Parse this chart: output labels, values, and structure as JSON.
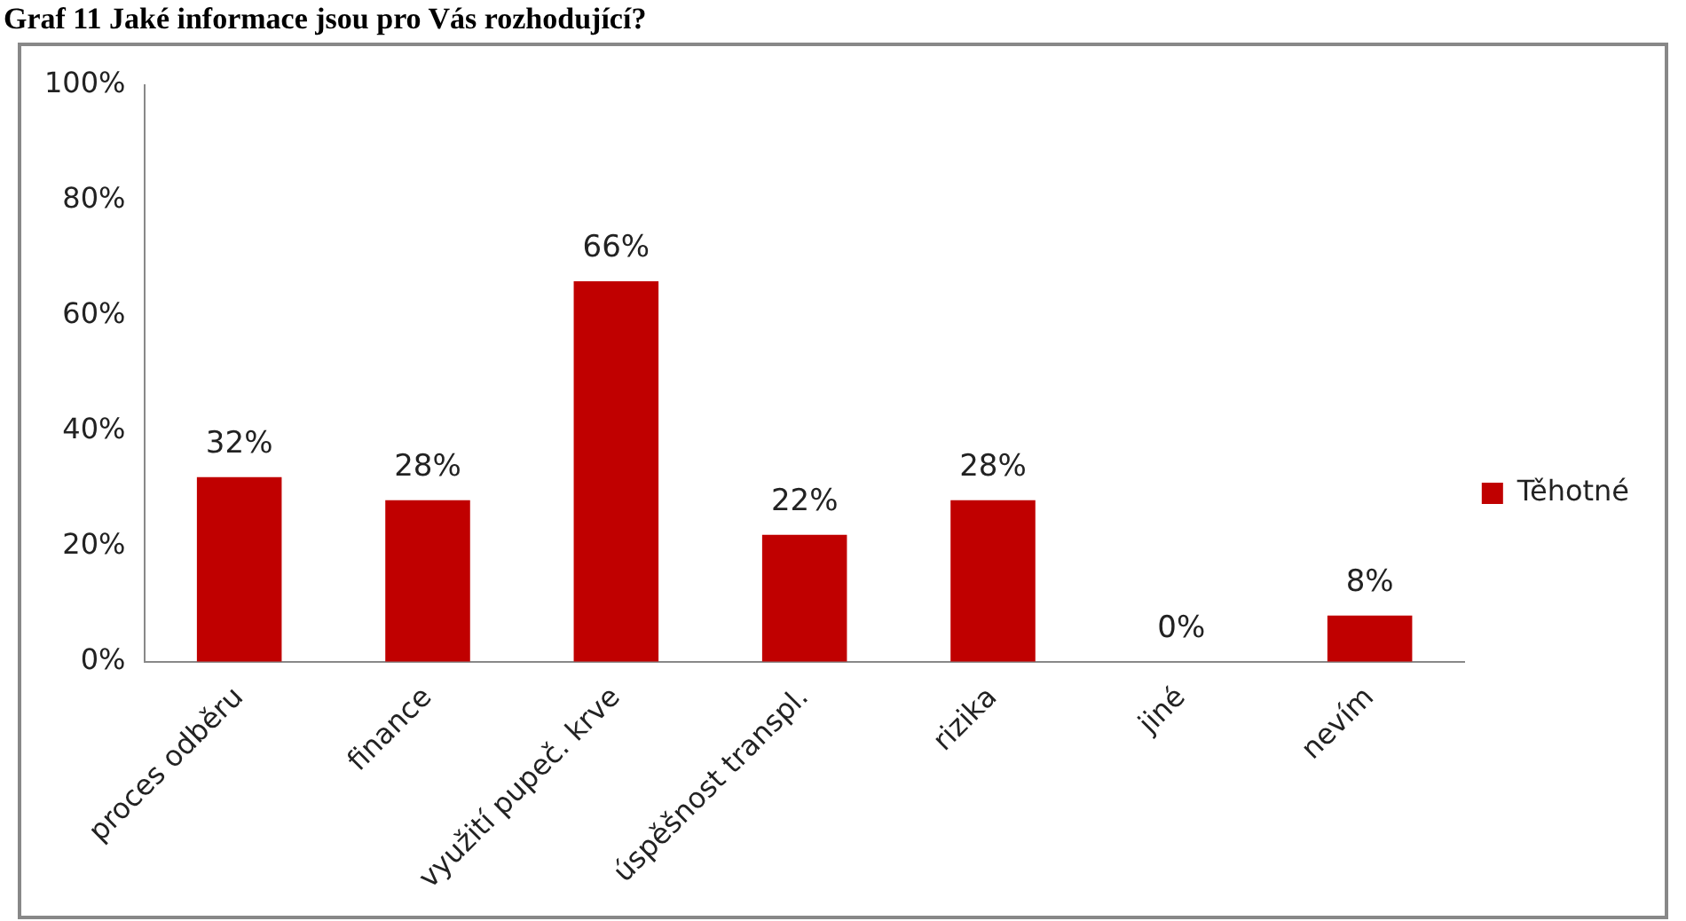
{
  "chart_data": {
    "type": "bar",
    "title": "Graf 11 Jaké informace jsou pro Vás rozhodující?",
    "categories": [
      "proces odběru",
      "finance",
      "využití pupeč. krve",
      "úspěšnost transpl.",
      "rizika",
      "jiné",
      "nevím"
    ],
    "series": [
      {
        "name": "Těhotné",
        "color": "#c00000",
        "values": [
          32,
          28,
          66,
          22,
          28,
          0,
          8
        ],
        "value_labels": [
          "32%",
          "28%",
          "66%",
          "22%",
          "28%",
          "0%",
          "8%"
        ]
      }
    ],
    "ylim": [
      0,
      100
    ],
    "yticks": [
      {
        "value": 0,
        "label": "0%"
      },
      {
        "value": 20,
        "label": "20%"
      },
      {
        "value": 40,
        "label": "40%"
      },
      {
        "value": 60,
        "label": "60%"
      },
      {
        "value": 80,
        "label": "80%"
      },
      {
        "value": 100,
        "label": "100%"
      }
    ],
    "legend": "right"
  }
}
